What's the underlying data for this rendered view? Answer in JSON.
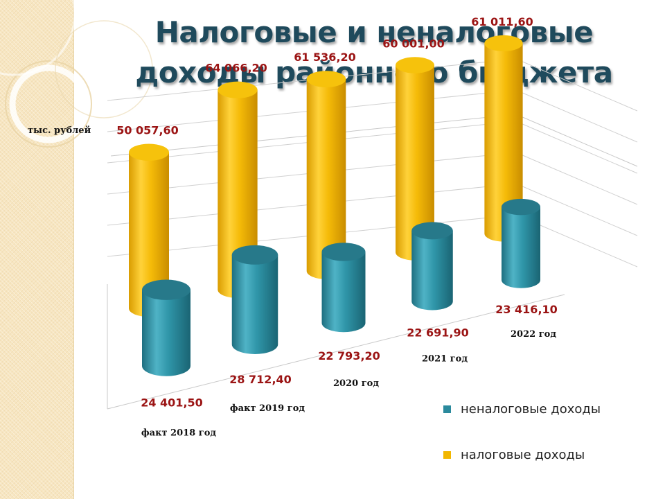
{
  "title_lines": [
    "Налоговые и неналоговые",
    "доходы районного бюджета"
  ],
  "colors": {
    "tax": "#f2b700",
    "nontax": "#2b8a9d",
    "value_label": "#9b1414",
    "title": "#1f4a5c"
  },
  "chart_data": {
    "type": "bar",
    "style": "3d-cylinder",
    "unit_label": "тыс. рублей",
    "categories": [
      "факт 2018 год",
      "факт 2019 год",
      "2020 год",
      "2021 год",
      "2022 год"
    ],
    "series": [
      {
        "name": "налоговые доходы",
        "values": [
          50057.6,
          64066.2,
          61536.2,
          60001.0,
          61011.6
        ],
        "labels": [
          "50 057,60",
          "64 066,20",
          "61 536,20",
          "60 001,00",
          "61 011,60"
        ]
      },
      {
        "name": "неналоговые доходы",
        "values": [
          24401.5,
          28712.4,
          22793.2,
          22691.9,
          23416.1
        ],
        "labels": [
          "24 401,50",
          "28 712,40",
          "22 793,20",
          "22 691,90",
          "23 416,10"
        ]
      }
    ],
    "legend": [
      "неналоговые доходы",
      "налоговые доходы"
    ],
    "legend_position": "bottom-right",
    "grid": true
  }
}
